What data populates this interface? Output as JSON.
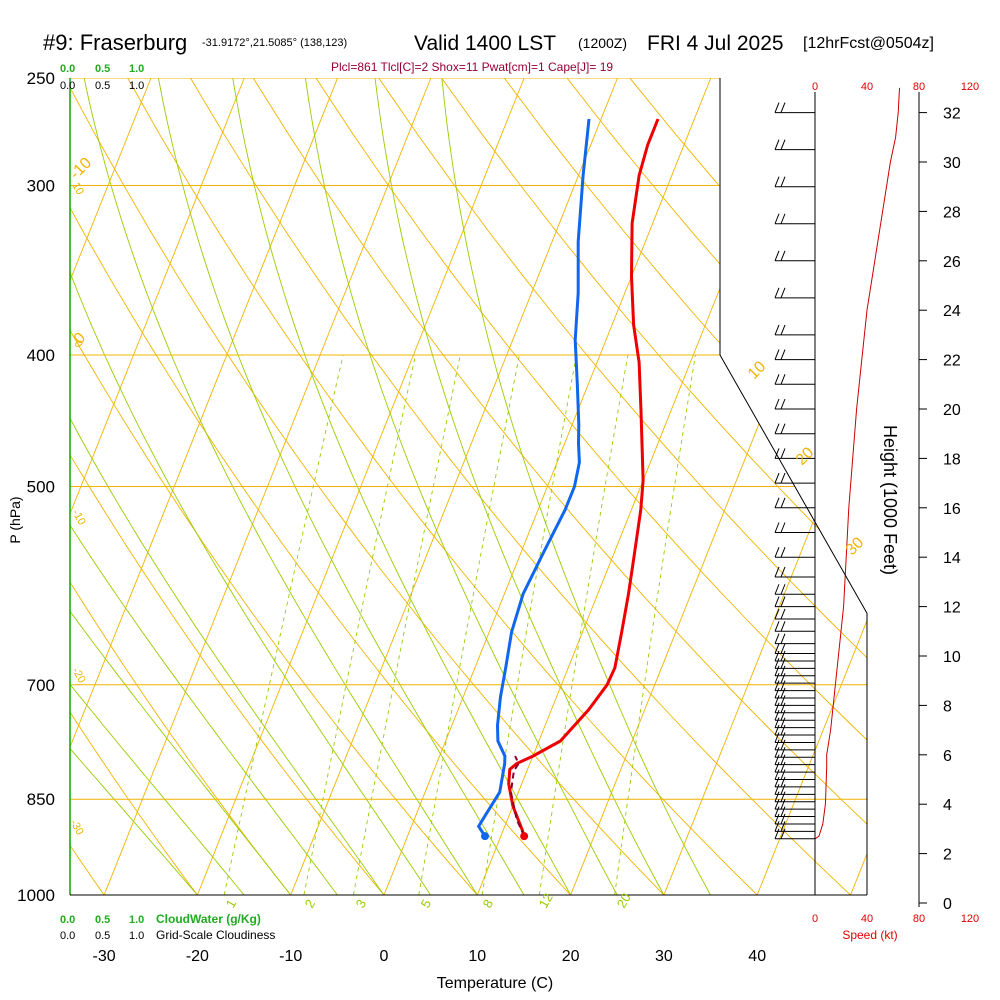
{
  "header": {
    "station": "#9: Fraserburg",
    "coords": "-31.9172°,21.5085° (138,123)",
    "valid": "Valid 1400 LST",
    "utc": "(1200Z)",
    "date": "FRI 4 Jul 2025",
    "forecast": "[12hrFcst@0504z]",
    "indices": "Plcl=861 Tlcl[C]=2 Shox=11 Pwat[cm]=1 Cape[J]= 19"
  },
  "cloud_scale": {
    "top_green": [
      "0.0",
      "0.5",
      "1.0"
    ],
    "top_black": [
      "0.0",
      "0.5",
      "1.0"
    ],
    "bottom_green": [
      "0.0",
      "0.5",
      "1.0"
    ],
    "bottom_green_label": "CloudWater (g/Kg)",
    "bottom_black": [
      "0.0",
      "0.5",
      "1.0"
    ],
    "bottom_black_label": "Grid-Scale Cloudiness"
  },
  "speed_scale": {
    "top": [
      "0",
      "40",
      "80",
      "120"
    ],
    "bottom": [
      "0",
      "40",
      "80",
      "120"
    ],
    "label": "Speed (kt)"
  },
  "colors": {
    "temperature": "#ee0000",
    "dewpoint": "#1166ee",
    "parcel": "#880033",
    "isobar": "#f0b400",
    "dry_adiabat": "#f0b400",
    "moist_adiabat": "#99cc00",
    "mixing_ratio": "#99cc00",
    "cloud_water": "#00aa00",
    "cloudiness": "#000000",
    "wind_speed": "#cc0000",
    "header_indices": "#990033"
  },
  "chart_data": {
    "type": "line",
    "title": "#9: Fraserburg",
    "xlabel": "Temperature (C)",
    "ylabel": "P (hPa)",
    "y2label": "Height (1000 Feet)",
    "x_ticks": [
      "-30",
      "-20",
      "-10",
      "0",
      "10",
      "20",
      "30",
      "40"
    ],
    "x_tick_values": [
      -30,
      -20,
      -10,
      0,
      10,
      20,
      30,
      40
    ],
    "y_ticks": [
      "250",
      "300",
      "400",
      "500",
      "700",
      "850",
      "1000"
    ],
    "y_tick_values": [
      250,
      300,
      400,
      500,
      700,
      850,
      1000
    ],
    "height_ticks": [
      "0",
      "2",
      "4",
      "6",
      "8",
      "10",
      "12",
      "14",
      "16",
      "18",
      "20",
      "22",
      "24",
      "26",
      "28",
      "30",
      "32"
    ],
    "height_tick_values": [
      0,
      2,
      4,
      6,
      8,
      10,
      12,
      14,
      16,
      18,
      20,
      22,
      24,
      26,
      28,
      30,
      32
    ],
    "ylim_hpa": [
      250,
      1000
    ],
    "xlim_c": [
      -35,
      36
    ],
    "dry_adiabat_labels": [
      "-10",
      "0",
      "10",
      "20",
      "30"
    ],
    "moist_adiabat_labels": [
      "10",
      "0",
      "-10",
      "-20",
      "-30"
    ],
    "mixing_ratio_labels": [
      "1",
      "2",
      "3",
      "5",
      "8",
      "12",
      "20"
    ],
    "series": [
      {
        "name": "",
        "kind": "temperature",
        "points": [
          [
            -3.9,
            268
          ],
          [
            -3.9,
            280
          ],
          [
            -3.5,
            295
          ],
          [
            -2.2,
            320
          ],
          [
            0,
            350
          ],
          [
            2.3,
            380
          ],
          [
            4.5,
            405
          ],
          [
            6.8,
            440
          ],
          [
            8.6,
            470
          ],
          [
            10,
            495
          ],
          [
            11,
            520
          ],
          [
            12.2,
            560
          ],
          [
            13.3,
            600
          ],
          [
            14.2,
            640
          ],
          [
            15,
            680
          ],
          [
            14.9,
            700
          ],
          [
            14,
            730
          ],
          [
            12.3,
            770
          ],
          [
            10,
            790
          ],
          [
            8.6,
            800
          ],
          [
            8.1,
            808
          ],
          [
            8.6,
            828
          ],
          [
            10,
            860
          ],
          [
            12,
            895
          ],
          [
            12.5,
            905
          ]
        ]
      },
      {
        "name": "",
        "kind": "dewpoint",
        "points": [
          [
            -11.3,
            268
          ],
          [
            -9.5,
            295
          ],
          [
            -7.2,
            330
          ],
          [
            -5,
            360
          ],
          [
            -3.3,
            390
          ],
          [
            -1.2,
            420
          ],
          [
            0.7,
            450
          ],
          [
            1.5,
            465
          ],
          [
            2.4,
            480
          ],
          [
            2.9,
            500
          ],
          [
            2.9,
            520
          ],
          [
            2.4,
            560
          ],
          [
            2,
            600
          ],
          [
            2.4,
            640
          ],
          [
            3.3,
            680
          ],
          [
            4,
            715
          ],
          [
            4.9,
            750
          ],
          [
            5.6,
            770
          ],
          [
            7,
            790
          ],
          [
            7.3,
            800
          ],
          [
            8,
            840
          ],
          [
            7.5,
            870
          ],
          [
            7.2,
            890
          ],
          [
            8.3,
            905
          ]
        ]
      },
      {
        "name": "",
        "kind": "parcel",
        "points": [
          [
            12.5,
            905
          ],
          [
            11,
            880
          ],
          [
            9.2,
            840
          ],
          [
            8.6,
            810
          ],
          [
            8.8,
            800
          ],
          [
            8.1,
            790
          ]
        ]
      }
    ],
    "wind_speed_profile_kt": [
      [
        0,
        2.6
      ],
      [
        3,
        2.7
      ],
      [
        6,
        3.2
      ],
      [
        8,
        4
      ],
      [
        9,
        5.5
      ],
      [
        9,
        6
      ],
      [
        12,
        7
      ],
      [
        14,
        8
      ],
      [
        16,
        9
      ],
      [
        18,
        10
      ],
      [
        20,
        11
      ],
      [
        22,
        12
      ],
      [
        24,
        14
      ],
      [
        26,
        16
      ],
      [
        32,
        20
      ],
      [
        40,
        24
      ],
      [
        46,
        26
      ],
      [
        52,
        28
      ],
      [
        58,
        30
      ],
      [
        62,
        31
      ],
      [
        64,
        32
      ],
      [
        65,
        33
      ]
    ],
    "wind_barb_heights_kft": [
      2.6,
      2.9,
      3.2,
      3.5,
      3.8,
      4.1,
      4.4,
      4.7,
      5.0,
      5.3,
      5.6,
      5.9,
      6.2,
      6.5,
      6.8,
      7.1,
      7.4,
      7.7,
      8.0,
      8.3,
      8.6,
      8.9,
      9.2,
      9.5,
      9.8,
      10.1,
      10.5,
      11,
      11.5,
      12,
      12.5,
      13.2,
      14,
      15,
      16,
      17,
      18,
      19,
      20,
      21,
      22,
      23,
      24.5,
      26,
      27.5,
      29,
      30.5,
      32
    ],
    "cloud_water_profile": [],
    "cloudiness_profile": []
  }
}
